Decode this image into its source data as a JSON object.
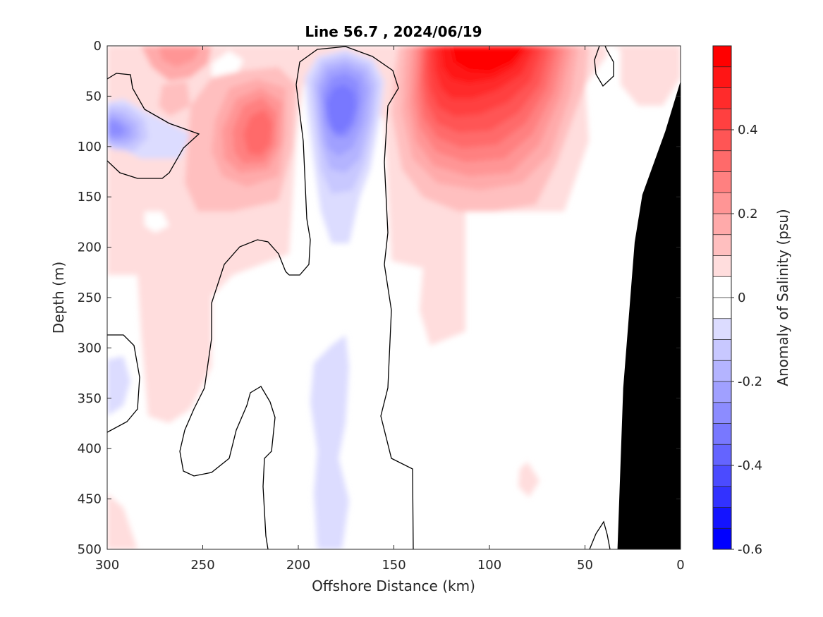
{
  "chart_data": {
    "type": "heatmap",
    "subtype": "filled-contour section",
    "title": "Line 56.7 , 2024/06/19",
    "xlabel": "Offshore Distance (km)",
    "ylabel": "Depth (m)",
    "colorbar_label": "Anomaly of Salinity (psu)",
    "x_reversed": true,
    "y_reversed": true,
    "xlim": [
      0,
      300
    ],
    "ylim": [
      0,
      500
    ],
    "xticks": [
      300,
      250,
      200,
      150,
      100,
      50,
      0
    ],
    "yticks": [
      0,
      50,
      100,
      150,
      200,
      250,
      300,
      350,
      400,
      450,
      500
    ],
    "colorbar": {
      "range": [
        -0.6,
        0.6
      ],
      "ticks": [
        0.4,
        0.2,
        0,
        -0.2,
        -0.4,
        -0.6
      ],
      "levels": [
        {
          "value": 0.55,
          "color": "#ff0000"
        },
        {
          "value": 0.5,
          "color": "#ff1515"
        },
        {
          "value": 0.45,
          "color": "#ff2b2b"
        },
        {
          "value": 0.4,
          "color": "#ff4040"
        },
        {
          "value": 0.35,
          "color": "#ff5555"
        },
        {
          "value": 0.3,
          "color": "#ff6a6a"
        },
        {
          "value": 0.25,
          "color": "#ff8080"
        },
        {
          "value": 0.2,
          "color": "#ff9595"
        },
        {
          "value": 0.15,
          "color": "#ffaaaa"
        },
        {
          "value": 0.1,
          "color": "#ffbfbf"
        },
        {
          "value": 0.05,
          "color": "#ffdddd"
        },
        {
          "value": 0.0,
          "color": "#ffffff"
        },
        {
          "value": -0.05,
          "color": "#ffffff"
        },
        {
          "value": -0.1,
          "color": "#dcdcff"
        },
        {
          "value": -0.15,
          "color": "#c8c8ff"
        },
        {
          "value": -0.2,
          "color": "#b4b4ff"
        },
        {
          "value": -0.25,
          "color": "#a0a0ff"
        },
        {
          "value": -0.3,
          "color": "#8c8cff"
        },
        {
          "value": -0.35,
          "color": "#7878ff"
        },
        {
          "value": -0.4,
          "color": "#6464ff"
        },
        {
          "value": -0.45,
          "color": "#4b4bff"
        },
        {
          "value": -0.5,
          "color": "#3232ff"
        },
        {
          "value": -0.55,
          "color": "#1414ff"
        },
        {
          "value": -0.6,
          "color": "#0000ff"
        }
      ]
    },
    "features": [
      {
        "name": "surface salty core",
        "x_km": 90,
        "depth_m": 20,
        "anomaly": 0.55
      },
      {
        "name": "offshore salty core",
        "x_km": 218,
        "depth_m": 85,
        "anomaly": 0.3
      },
      {
        "name": "near-surface salty patch",
        "x_km": 262,
        "depth_m": 5,
        "anomaly": 0.15
      },
      {
        "name": "fresh core",
        "x_km": 178,
        "depth_m": 70,
        "anomaly": -0.35
      },
      {
        "name": "western fresh patch",
        "x_km": 290,
        "depth_m": 82,
        "anomaly": -0.3
      },
      {
        "name": "deep fresh tongue",
        "x_km": 180,
        "depth_m": 400,
        "anomaly": -0.1
      }
    ],
    "bathymetry": {
      "color": "#000000",
      "profile": [
        {
          "x_km": 0,
          "depth_m": 35
        },
        {
          "x_km": 8,
          "depth_m": 85
        },
        {
          "x_km": 20,
          "depth_m": 148
        },
        {
          "x_km": 24,
          "depth_m": 195
        },
        {
          "x_km": 30,
          "depth_m": 340
        },
        {
          "x_km": 33,
          "depth_m": 500
        }
      ]
    }
  }
}
